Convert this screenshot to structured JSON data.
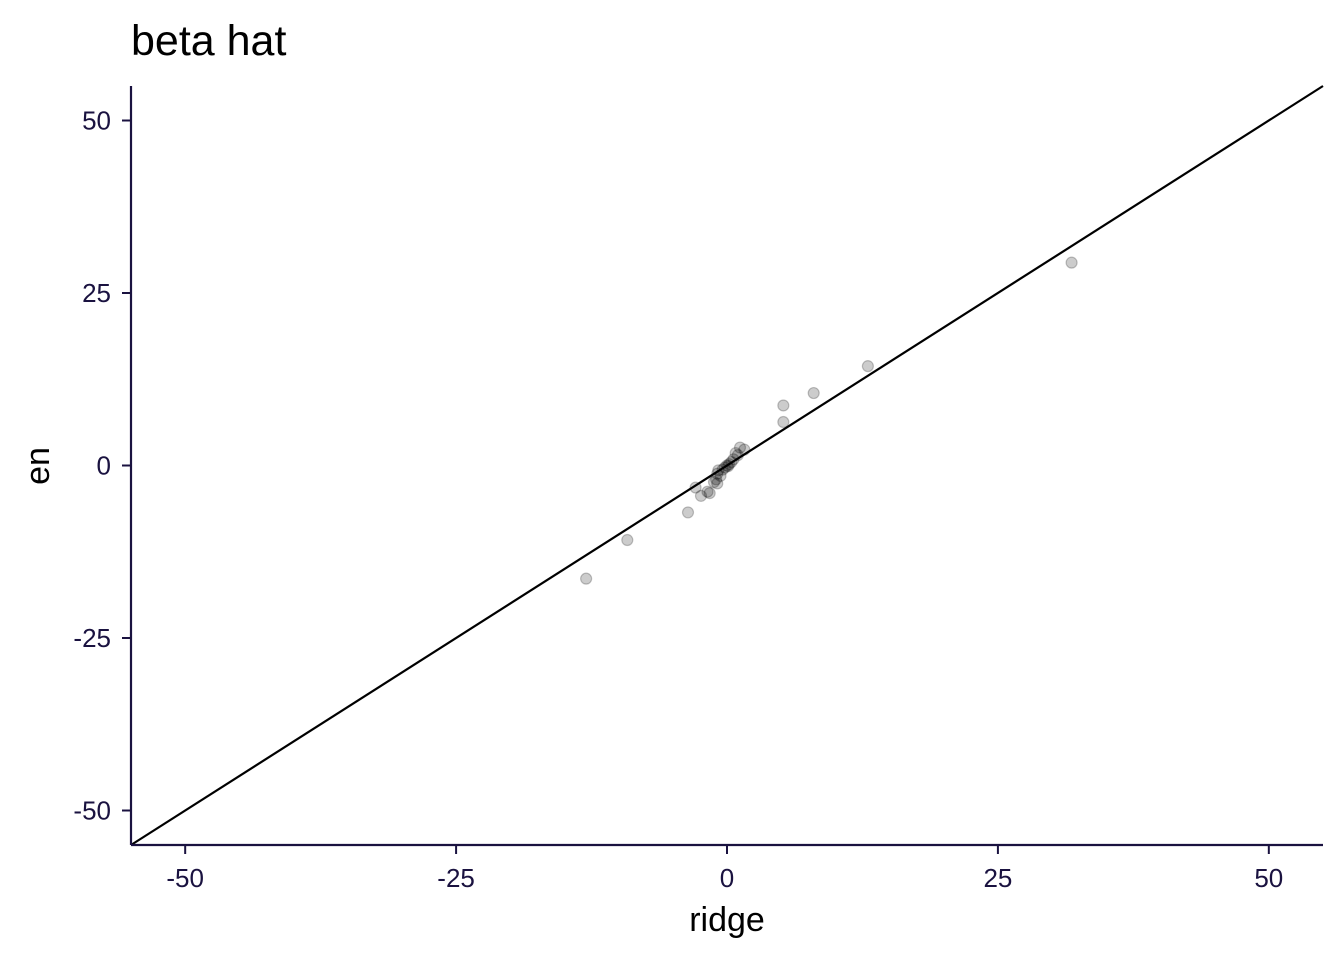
{
  "chart_data": {
    "type": "scatter",
    "title": "beta hat",
    "xlabel": "ridge",
    "ylabel": "en",
    "xlim": [
      -55,
      55
    ],
    "ylim": [
      -55,
      55
    ],
    "xticks": [
      -50,
      -25,
      0,
      25,
      50
    ],
    "yticks": [
      -50,
      -25,
      0,
      25,
      50
    ],
    "xtick_labels": [
      "-50",
      "-25",
      "0",
      "25",
      "50"
    ],
    "ytick_labels": [
      "-50",
      "-25",
      "0",
      "25",
      "50"
    ],
    "grid": false,
    "reference_line": {
      "slope": 1,
      "intercept": 0
    },
    "point_color": "#000000",
    "axis_color": "#1a1240",
    "points": [
      {
        "x": 31.8,
        "y": 29.4
      },
      {
        "x": 13.0,
        "y": 14.4
      },
      {
        "x": 8.0,
        "y": 10.5
      },
      {
        "x": 5.2,
        "y": 8.7
      },
      {
        "x": 5.2,
        "y": 6.3
      },
      {
        "x": 1.2,
        "y": 2.6
      },
      {
        "x": 1.6,
        "y": 2.3
      },
      {
        "x": 0.8,
        "y": 1.8
      },
      {
        "x": 1.0,
        "y": 1.5
      },
      {
        "x": 0.6,
        "y": 0.9
      },
      {
        "x": 0.4,
        "y": 0.5
      },
      {
        "x": 0.2,
        "y": 0.2
      },
      {
        "x": 0.0,
        "y": 0.0
      },
      {
        "x": -0.2,
        "y": -0.3
      },
      {
        "x": 0.1,
        "y": -0.1
      },
      {
        "x": -0.4,
        "y": -0.6
      },
      {
        "x": -0.8,
        "y": -0.7
      },
      {
        "x": -0.9,
        "y": -1.2
      },
      {
        "x": -0.6,
        "y": -1.5
      },
      {
        "x": -1.0,
        "y": -2.0
      },
      {
        "x": -1.2,
        "y": -2.4
      },
      {
        "x": -0.9,
        "y": -2.6
      },
      {
        "x": -1.8,
        "y": -3.8
      },
      {
        "x": -1.6,
        "y": -4.0
      },
      {
        "x": -2.4,
        "y": -4.4
      },
      {
        "x": -2.9,
        "y": -3.2
      },
      {
        "x": -3.6,
        "y": -6.8
      },
      {
        "x": -9.2,
        "y": -10.8
      },
      {
        "x": -13.0,
        "y": -16.4
      }
    ]
  }
}
